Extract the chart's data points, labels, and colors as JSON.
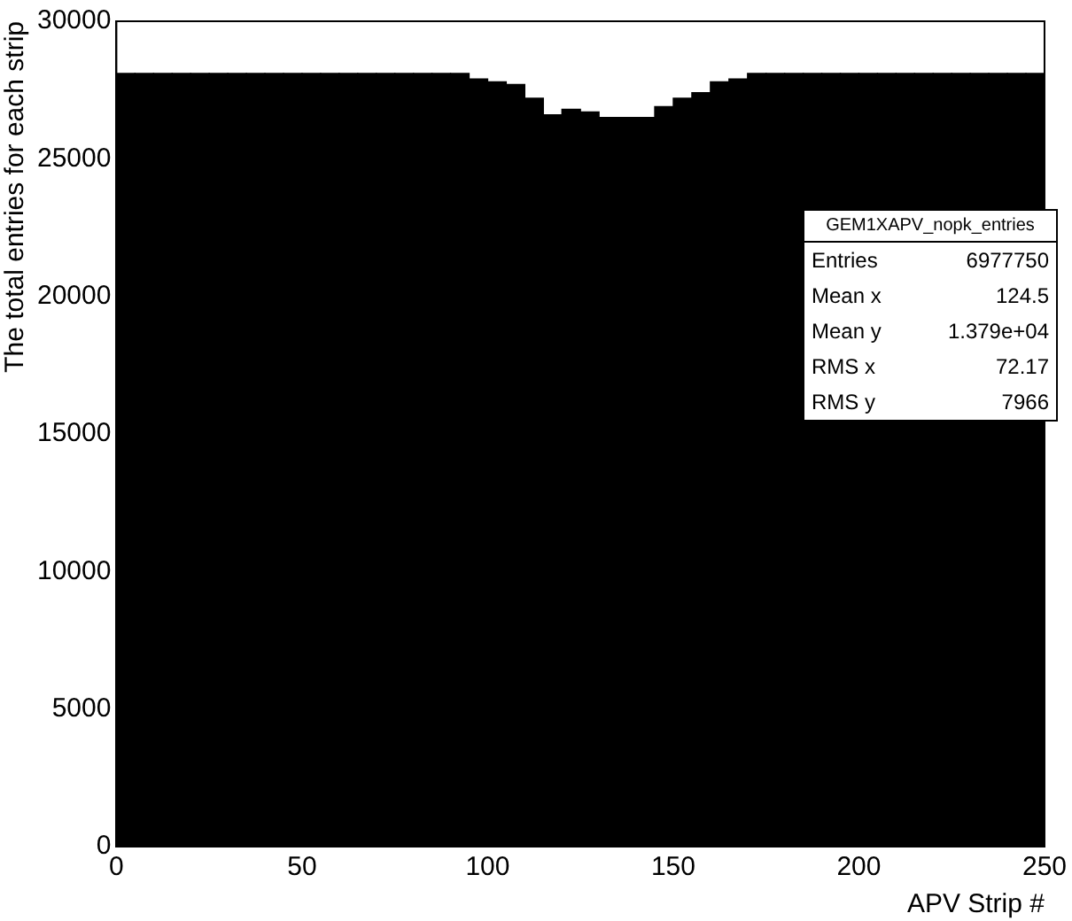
{
  "chart_data": {
    "type": "histogram",
    "xlabel": "APV Strip #",
    "ylabel": "The total entries for each strip",
    "bins": [
      0,
      5,
      10,
      15,
      20,
      25,
      30,
      35,
      40,
      45,
      50,
      55,
      60,
      65,
      70,
      75,
      80,
      85,
      90,
      95,
      100,
      105,
      110,
      115,
      120,
      125,
      130,
      135,
      140,
      145,
      150,
      155,
      160,
      165,
      170,
      175,
      180,
      185,
      190,
      195,
      200,
      205,
      210,
      215,
      220,
      225,
      230,
      235,
      240,
      245,
      250
    ],
    "values": [
      28100,
      28100,
      28100,
      28100,
      28100,
      28100,
      28100,
      28100,
      28100,
      28100,
      28100,
      28100,
      28100,
      28100,
      28100,
      28100,
      28100,
      28100,
      28100,
      27900,
      27800,
      27700,
      27200,
      26600,
      26800,
      26700,
      26500,
      26500,
      26500,
      26900,
      27200,
      27400,
      27800,
      27900,
      28100,
      28100,
      28100,
      28100,
      28100,
      28100,
      28100,
      28100,
      28100,
      28100,
      28100,
      28100,
      28100,
      28100,
      28100,
      28100
    ],
    "color": "#000000",
    "xlim": [
      0,
      250
    ],
    "xticks": [
      0,
      50,
      100,
      150,
      200,
      250
    ],
    "ylim": [
      0,
      30000
    ],
    "yticks": [
      0,
      5000,
      10000,
      15000,
      20000,
      25000,
      30000
    ],
    "grid": false,
    "legend": false,
    "annotations": [
      "GEM1XAPV_nopk_entries",
      "Entries 6977750",
      "Mean x 124.5",
      "Mean y 1.379e+04",
      "RMS x 72.17",
      "RMS y 7966"
    ]
  }
}
